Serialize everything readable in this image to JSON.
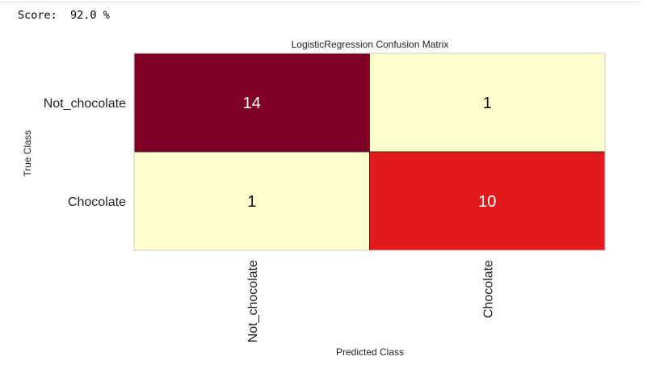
{
  "output": {
    "score_text": "Score:  92.0 %"
  },
  "chart_data": {
    "type": "heatmap",
    "title": "LogisticRegression Confusion Matrix",
    "xlabel": "Predicted Class",
    "ylabel": "True Class",
    "x_categories": [
      "Not_chocolate",
      "Chocolate"
    ],
    "y_categories": [
      "Not_chocolate",
      "Chocolate"
    ],
    "values": [
      [
        14,
        1
      ],
      [
        1,
        10
      ]
    ],
    "colors": {
      "high": "#800026",
      "mid_high": "#e31a1c",
      "low": "#ffffcc",
      "text_dark": "#111111",
      "text_light": "#ffffff",
      "frame": "#cccccc"
    }
  }
}
